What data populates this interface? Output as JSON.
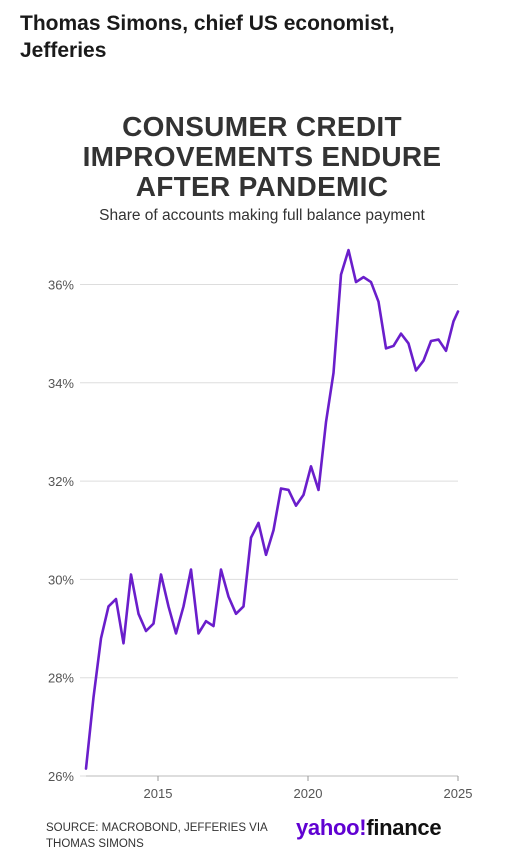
{
  "header": {
    "line1": "Thomas Simons, chief US economist,",
    "line2": "Jefferies"
  },
  "chart_data": {
    "type": "line",
    "title_lines": [
      "CONSUMER CREDIT",
      "IMPROVEMENTS ENDURE",
      "AFTER PANDEMIC"
    ],
    "subtitle": "Share of accounts making full balance payment",
    "xlabel": "",
    "ylabel": "",
    "xlim": [
      2012.6,
      2025.0
    ],
    "ylim": [
      26,
      36.6
    ],
    "y_ticks": [
      26,
      28,
      30,
      32,
      34,
      36
    ],
    "y_tick_labels": [
      "26%",
      "28%",
      "30%",
      "32%",
      "34%",
      "36%"
    ],
    "x_ticks": [
      2015,
      2020,
      2025
    ],
    "x_tick_labels": [
      "2015",
      "2020",
      "2025"
    ],
    "grid": true,
    "line_color": "#6a1ecb",
    "series": [
      {
        "x": [
          2012.6,
          2012.85,
          2013.1,
          2013.35,
          2013.6,
          2013.85,
          2014.1,
          2014.35,
          2014.6,
          2014.85,
          2015.1,
          2015.35,
          2015.6,
          2015.85,
          2016.1,
          2016.35,
          2016.6,
          2016.85,
          2017.1,
          2017.35,
          2017.6,
          2017.85,
          2018.1,
          2018.35,
          2018.6,
          2018.85,
          2019.1,
          2019.35,
          2019.6,
          2019.85,
          2020.1,
          2020.35,
          2020.6,
          2020.85,
          2021.1,
          2021.35,
          2021.6,
          2021.85,
          2022.1,
          2022.35,
          2022.6,
          2022.85,
          2023.1,
          2023.35,
          2023.6,
          2023.85,
          2024.1,
          2024.35,
          2024.6,
          2024.85,
          2025.0
        ],
        "values": [
          26.15,
          27.6,
          28.8,
          29.45,
          29.6,
          28.7,
          30.1,
          29.3,
          28.95,
          29.1,
          30.1,
          29.45,
          28.9,
          29.45,
          30.2,
          28.9,
          29.15,
          29.05,
          30.2,
          29.65,
          29.3,
          29.45,
          30.85,
          31.15,
          30.5,
          31.0,
          31.85,
          31.82,
          31.5,
          31.72,
          32.3,
          31.82,
          33.2,
          34.2,
          36.2,
          36.7,
          36.05,
          36.15,
          36.05,
          35.65,
          34.7,
          34.75,
          35.0,
          34.8,
          34.25,
          34.45,
          34.85,
          34.88,
          34.65,
          35.25,
          35.45
        ]
      }
    ]
  },
  "source": {
    "line1": "Source: Macrobond, Jefferies via",
    "line2": "Thomas Simons"
  },
  "logo": {
    "part1": "yahoo",
    "bang": "!",
    "part2": "finance"
  }
}
